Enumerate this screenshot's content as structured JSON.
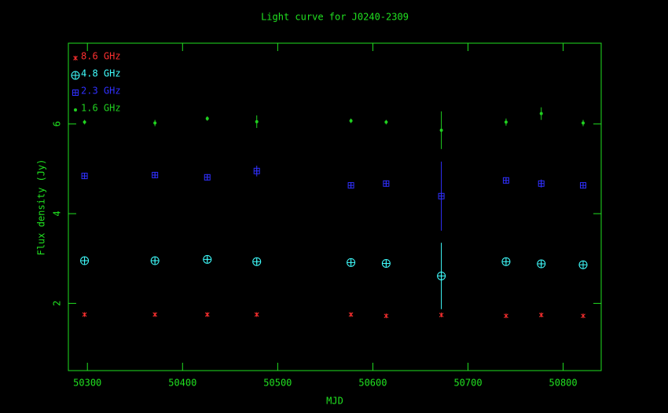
{
  "chart_data": {
    "type": "scatter",
    "title": "Light curve for J0240-2309",
    "x_label": "MJD",
    "y_label": "Flux density (Jy)",
    "x": [
      50297,
      50371,
      50426,
      50478,
      50577,
      50614,
      50672,
      50740,
      50777,
      50821
    ],
    "series": [
      {
        "name": "8.6 GHz",
        "color": "#ff3030",
        "marker": "x",
        "values": [
          1.75,
          1.75,
          1.75,
          1.75,
          1.75,
          1.72,
          1.74,
          1.72,
          1.74,
          1.72
        ],
        "errors": [
          0.03,
          0.03,
          0.04,
          0.03,
          0.03,
          0.04,
          0.05,
          0.03,
          0.05,
          0.04
        ]
      },
      {
        "name": "4.8 GHz",
        "color": "#40ffff",
        "marker": "circle-plus",
        "values": [
          2.95,
          2.95,
          2.98,
          2.93,
          2.91,
          2.89,
          2.61,
          2.93,
          2.88,
          2.86
        ],
        "errors": [
          0.05,
          0.05,
          0.05,
          0.05,
          0.05,
          0.05,
          0.74,
          0.05,
          0.05,
          0.05
        ]
      },
      {
        "name": "2.3 GHz",
        "color": "#3030ff",
        "marker": "square-plus",
        "values": [
          4.84,
          4.86,
          4.81,
          4.95,
          4.63,
          4.67,
          4.39,
          4.74,
          4.67,
          4.63
        ],
        "errors": [
          0.07,
          0.07,
          0.07,
          0.12,
          0.07,
          0.07,
          0.77,
          0.07,
          0.09,
          0.07
        ]
      },
      {
        "name": "1.6 GHz",
        "color": "#20d020",
        "marker": "dot",
        "values": [
          6.04,
          6.02,
          6.12,
          6.05,
          6.07,
          6.04,
          5.86,
          6.04,
          6.23,
          6.02
        ],
        "errors": [
          0.05,
          0.07,
          0.05,
          0.14,
          0.05,
          0.05,
          0.42,
          0.08,
          0.14,
          0.07
        ]
      }
    ],
    "xlim": [
      50280,
      50840
    ],
    "ylim": [
      0.5,
      7.8
    ],
    "xticks": [
      50300,
      50400,
      50500,
      50600,
      50700,
      50800
    ],
    "yticks": [
      2,
      4,
      6
    ],
    "axis_color": "#20e020",
    "legend": "upper left"
  }
}
